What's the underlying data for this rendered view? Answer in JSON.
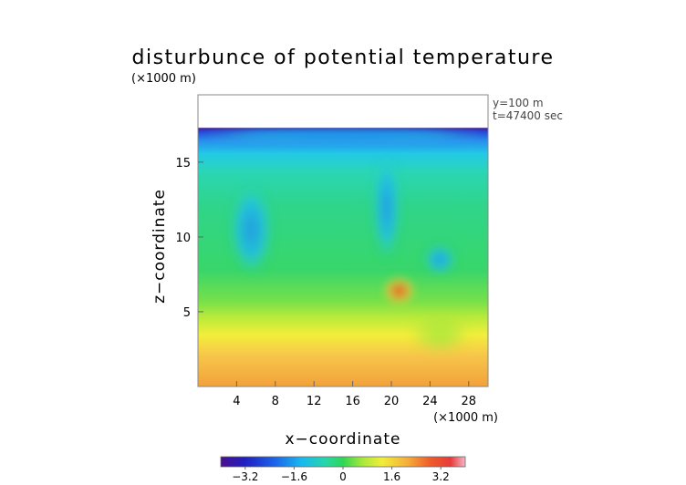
{
  "chart_data": {
    "type": "heatmap",
    "title": "disturbunce of potential temperature",
    "scale_note_y": "(×1000 m)",
    "scale_note_x": "(×1000 m)",
    "xlabel": "x−coordinate",
    "ylabel": "z−coordinate",
    "annotations": [
      "y=100 m",
      "t=47400 sec"
    ],
    "xlim": [
      0,
      30
    ],
    "ylim": [
      0,
      19.5
    ],
    "x_ticks": [
      4,
      8,
      12,
      16,
      20,
      24,
      28
    ],
    "y_ticks": [
      5,
      10,
      15
    ],
    "data_top": 17.3,
    "colorbar": {
      "range": [
        -4,
        4
      ],
      "ticks": [
        -3.2,
        -1.6,
        0,
        1.6,
        3.2
      ],
      "tick_labels": [
        "−3.2",
        "−1.6",
        "0",
        "1.6",
        "3.2"
      ]
    },
    "features": [
      {
        "name": "warm-core",
        "x": 20.8,
        "z": 6.4,
        "value": 2.8
      },
      {
        "name": "warm-plume",
        "x": 25,
        "z": 3.5,
        "value": 1.4
      },
      {
        "name": "cool-top-band",
        "x": 15,
        "z": 16.8,
        "value": -1.6
      },
      {
        "name": "cool-tongue-left",
        "x": 5.5,
        "z": 10.5,
        "value": -0.9
      },
      {
        "name": "cool-tongue-center",
        "x": 19.5,
        "z": 12,
        "value": -1.0
      },
      {
        "name": "cool-tongue-right",
        "x": 25,
        "z": 8.5,
        "value": -1.2
      }
    ]
  }
}
